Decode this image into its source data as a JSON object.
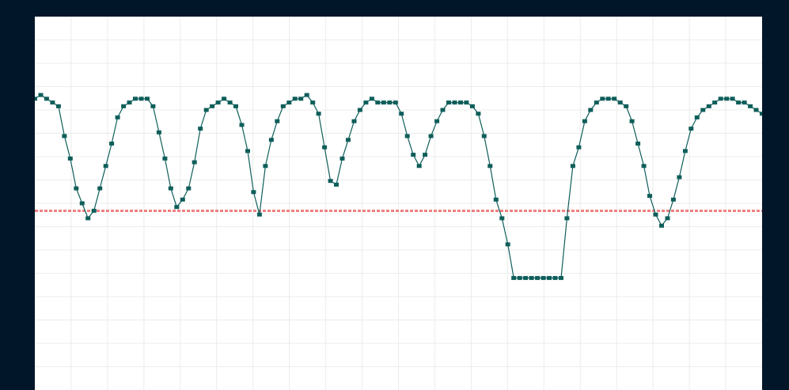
{
  "chart_data": {
    "type": "line",
    "title": "",
    "xlabel": "",
    "ylabel": "",
    "grid": true,
    "xlim": [
      0,
      123
    ],
    "ylim": [
      0,
      100
    ],
    "colors": {
      "series": "#0e5e5a",
      "threshold": "#f08080",
      "grid": "#ececec",
      "background": "#ffffff",
      "frame": "#02162a"
    },
    "threshold": {
      "value": 48
    },
    "series": [
      {
        "x": [
          0,
          1,
          2,
          3,
          4,
          5,
          6,
          7,
          8,
          9,
          10,
          11,
          12,
          13,
          14,
          15,
          16,
          17,
          18,
          19,
          20,
          21,
          22,
          23,
          24,
          25,
          26,
          27,
          28,
          29,
          30,
          31,
          32,
          33,
          34,
          35,
          36,
          37,
          38,
          39,
          40,
          41,
          42,
          43,
          44,
          45,
          46,
          47,
          48,
          49,
          50,
          51,
          52,
          53,
          54,
          55,
          56,
          57,
          58,
          59,
          60,
          61,
          62,
          63,
          64,
          65,
          66,
          67,
          68,
          69,
          70,
          71,
          72,
          73,
          74,
          75,
          76,
          77,
          78,
          79,
          80,
          81,
          82,
          83,
          84,
          85,
          86,
          87,
          88,
          89,
          90,
          91,
          92,
          93,
          94,
          95,
          96,
          97,
          98,
          99,
          100,
          101,
          102,
          103,
          104,
          105,
          106,
          107,
          108,
          109,
          110,
          111,
          112,
          113,
          114,
          115,
          116,
          117,
          118,
          119,
          120,
          121,
          122,
          123
        ],
        "values": [
          78,
          79,
          78,
          77,
          76,
          68,
          62,
          54,
          50,
          46,
          48,
          54,
          60,
          66,
          73,
          76,
          77,
          78,
          78,
          78,
          76,
          69,
          62,
          54,
          49,
          51,
          54,
          61,
          70,
          75,
          76,
          77,
          78,
          77,
          76,
          71,
          64,
          53,
          47,
          60,
          67,
          72,
          76,
          77,
          78,
          78,
          79,
          77,
          74,
          65,
          56,
          55,
          62,
          67,
          72,
          75,
          77,
          78,
          77,
          77,
          77,
          77,
          74,
          68,
          63,
          60,
          63,
          68,
          72,
          75,
          77,
          77,
          77,
          77,
          76,
          74,
          68,
          60,
          51,
          46,
          39,
          30,
          30,
          30,
          30,
          30,
          30,
          30,
          30,
          30,
          46,
          60,
          65,
          72,
          75,
          77,
          78,
          78,
          78,
          77,
          76,
          72,
          66,
          60,
          52,
          47,
          44,
          46,
          51,
          57,
          64,
          70,
          73,
          75,
          76,
          77,
          78,
          78,
          78,
          77,
          77,
          76,
          75,
          74
        ]
      }
    ]
  }
}
